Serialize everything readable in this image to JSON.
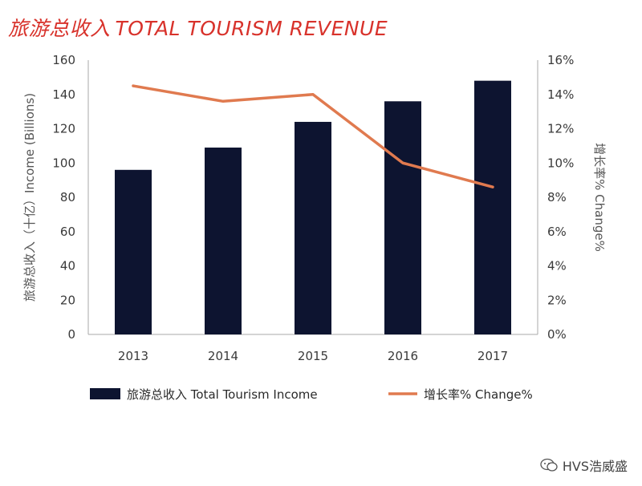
{
  "title": {
    "cn": "旅游总收入",
    "en": "TOTAL TOURISM REVENUE"
  },
  "colors": {
    "title": "#d8322b",
    "bar": "#0d1430",
    "line": "#e07a4f",
    "axis": "#aaaaaa"
  },
  "chart_data": {
    "type": "bar",
    "categories": [
      "2013",
      "2014",
      "2015",
      "2016",
      "2017"
    ],
    "series": [
      {
        "name": "旅游总收入 Total Tourism Income",
        "type": "bar",
        "axis": "left",
        "values": [
          96,
          109,
          124,
          136,
          148
        ]
      },
      {
        "name": "增长率% Change%",
        "type": "line",
        "axis": "right",
        "values": [
          14.5,
          13.6,
          14.0,
          10.0,
          8.6
        ]
      }
    ],
    "ylabel_left": "旅游总收入（十亿）Income (Billions)",
    "ylabel_right": "增长率% Change%",
    "ylim_left": [
      0,
      160
    ],
    "ylim_right": [
      0,
      16
    ],
    "yticks_left": [
      "0",
      "20",
      "40",
      "60",
      "80",
      "100",
      "120",
      "140",
      "160"
    ],
    "yticks_right": [
      "0%",
      "2%",
      "4%",
      "6%",
      "8%",
      "10%",
      "12%",
      "14%",
      "16%"
    ],
    "grid": false,
    "legend_position": "bottom"
  },
  "watermark": {
    "text": "HVS浩威盛"
  }
}
